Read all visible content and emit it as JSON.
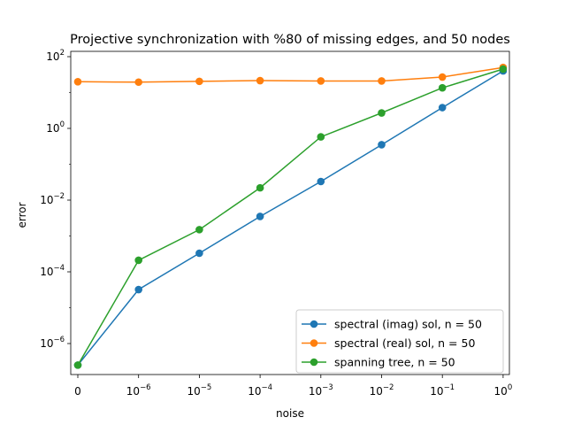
{
  "chart_data": {
    "type": "line",
    "title": "Projective synchronization with %80 of missing edges, and 50 nodes",
    "xlabel": "noise",
    "ylabel": "error",
    "x_scale": "log (first category 0)",
    "y_scale": "log",
    "categories": [
      "0",
      "1e-6",
      "1e-5",
      "1e-4",
      "1e-3",
      "1e-2",
      "1e-1",
      "1e0"
    ],
    "x_tick_labels": [
      {
        "base": "0",
        "exp": ""
      },
      {
        "base": "10",
        "exp": "−6"
      },
      {
        "base": "10",
        "exp": "−5"
      },
      {
        "base": "10",
        "exp": "−4"
      },
      {
        "base": "10",
        "exp": "−3"
      },
      {
        "base": "10",
        "exp": "−2"
      },
      {
        "base": "10",
        "exp": "−1"
      },
      {
        "base": "10",
        "exp": "0"
      }
    ],
    "y_ticks": [
      {
        "value": 1e-06,
        "base": "10",
        "exp": "−6"
      },
      {
        "value": 0.0001,
        "base": "10",
        "exp": "−4"
      },
      {
        "value": 0.01,
        "base": "10",
        "exp": "−2"
      },
      {
        "value": 1,
        "base": "10",
        "exp": "0"
      },
      {
        "value": 100,
        "base": "10",
        "exp": "2"
      }
    ],
    "ylim": [
      1e-07,
      150
    ],
    "grid": false,
    "legend_position": "lower-right",
    "series": [
      {
        "name": "spectral (imag) sol, n = 50",
        "color": "#1f77b4",
        "values": [
          2.5e-07,
          3.2e-05,
          0.00033,
          0.0035,
          0.033,
          0.35,
          3.8,
          40
        ]
      },
      {
        "name": "spectral (real) sol, n = 50",
        "color": "#ff7f0e",
        "values": [
          20,
          19.5,
          20.5,
          21.5,
          21,
          21,
          27,
          50
        ]
      },
      {
        "name": "spanning tree, n = 50",
        "color": "#2ca02c",
        "values": [
          2.5e-07,
          0.00021,
          0.0015,
          0.022,
          0.58,
          2.7,
          13.5,
          45
        ]
      }
    ]
  }
}
